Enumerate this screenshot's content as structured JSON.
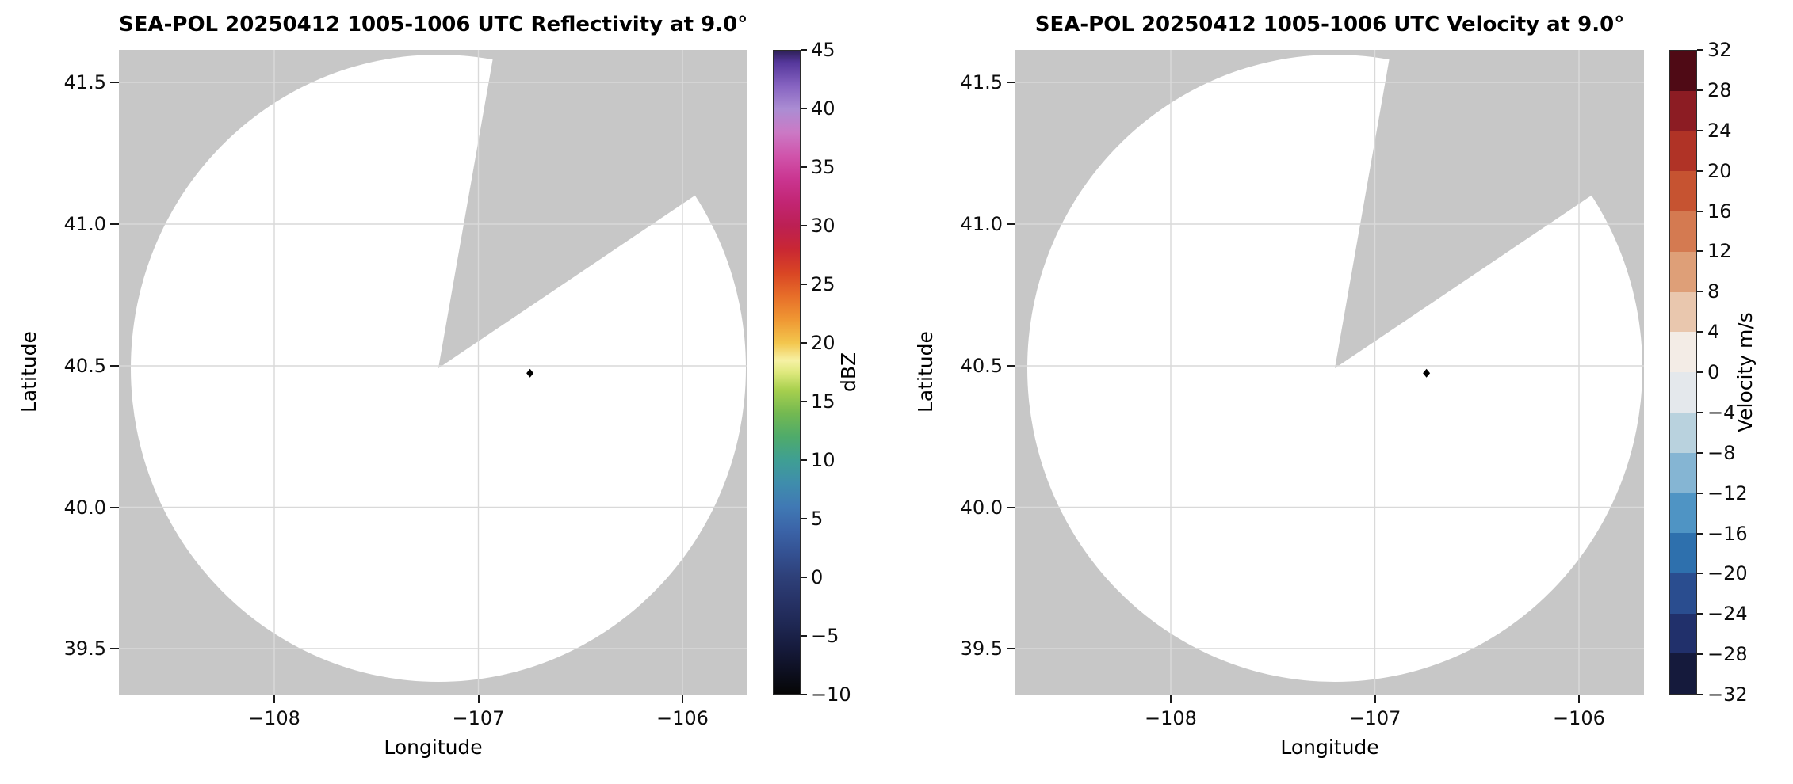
{
  "plot": {
    "masked_color": "#c7c7c7",
    "scan_fill": "#ffffff",
    "grid_color": "#d9d9d9",
    "marker_color": "#000000"
  },
  "panels": [
    {
      "title": "SEA-POL 20250412 1005-1006 UTC Reflectivity at 9.0°",
      "xlabel": "Longitude",
      "ylabel": "Latitude",
      "xtick_labels": [
        "−108",
        "−107",
        "−106"
      ],
      "ytick_labels": [
        "41.5",
        "41.0",
        "40.5",
        "40.0",
        "39.5"
      ],
      "colorbar": {
        "label": "dBZ",
        "type": "continuous",
        "min": -10,
        "max": 45,
        "tick_labels": [
          "45",
          "40",
          "35",
          "30",
          "25",
          "20",
          "15",
          "10",
          "5",
          "0",
          "−5",
          "−10"
        ],
        "gradient_stops": [
          {
            "v": -10,
            "c": "#060606"
          },
          {
            "v": -8,
            "c": "#0e1022"
          },
          {
            "v": -6,
            "c": "#161b3d"
          },
          {
            "v": -4,
            "c": "#1f2854"
          },
          {
            "v": -2,
            "c": "#273367"
          },
          {
            "v": 0,
            "c": "#2e4079"
          },
          {
            "v": 2,
            "c": "#345192"
          },
          {
            "v": 4,
            "c": "#3b64a8"
          },
          {
            "v": 6,
            "c": "#4079b4"
          },
          {
            "v": 8,
            "c": "#3f8dac"
          },
          {
            "v": 10,
            "c": "#3f9f93"
          },
          {
            "v": 12,
            "c": "#4fab6a"
          },
          {
            "v": 14,
            "c": "#74b951"
          },
          {
            "v": 16,
            "c": "#a8d04e"
          },
          {
            "v": 17.5,
            "c": "#dfe97e"
          },
          {
            "v": 18.5,
            "c": "#f6f1a4"
          },
          {
            "v": 20,
            "c": "#f3c64d"
          },
          {
            "v": 22,
            "c": "#ef9733"
          },
          {
            "v": 24,
            "c": "#e76e29"
          },
          {
            "v": 26,
            "c": "#d94524"
          },
          {
            "v": 28,
            "c": "#c92733"
          },
          {
            "v": 30,
            "c": "#bc2053"
          },
          {
            "v": 32,
            "c": "#c22573"
          },
          {
            "v": 34,
            "c": "#ca3590"
          },
          {
            "v": 36,
            "c": "#d054ab"
          },
          {
            "v": 38,
            "c": "#cb79c5"
          },
          {
            "v": 40,
            "c": "#ab8dd3"
          },
          {
            "v": 42,
            "c": "#8663c1"
          },
          {
            "v": 44,
            "c": "#55379b"
          },
          {
            "v": 45,
            "c": "#2e2058"
          }
        ]
      }
    },
    {
      "title": "SEA-POL 20250412 1005-1006 UTC Velocity at 9.0°",
      "xlabel": "Longitude",
      "ylabel": "Latitude",
      "xtick_labels": [
        "−108",
        "−107",
        "−106"
      ],
      "ytick_labels": [
        "41.5",
        "41.0",
        "40.5",
        "40.0",
        "39.5"
      ],
      "colorbar": {
        "label": "Velocity m/s",
        "type": "discrete",
        "min": -32,
        "max": 32,
        "tick_labels": [
          "32",
          "28",
          "24",
          "20",
          "16",
          "12",
          "8",
          "4",
          "0",
          "−4",
          "−8",
          "−12",
          "−16",
          "−20",
          "−24",
          "−28",
          "−32"
        ],
        "segment_colors_bottom_to_top": [
          "#151a3c",
          "#21306b",
          "#2a4d8f",
          "#2e70ad",
          "#4f94c4",
          "#85b5d3",
          "#b9d2de",
          "#e4e8ec",
          "#f3ece6",
          "#e9c7ae",
          "#de9f78",
          "#d47a51",
          "#c65331",
          "#b03326",
          "#8c1c23",
          "#4f0a15"
        ]
      }
    }
  ],
  "chart_data": [
    {
      "type": "radar_ppi",
      "title": "SEA-POL 20250412 1005-1006 UTC Reflectivity at 9.0°",
      "field": "reflectivity",
      "units": "dBZ",
      "elevation_angle_deg": 9.0,
      "xlabel": "Longitude",
      "ylabel": "Latitude",
      "xticks": [
        -108,
        -107,
        -106
      ],
      "yticks": [
        39.5,
        40.0,
        40.5,
        41.0,
        41.5
      ],
      "xlim": [
        -108.76,
        -105.68
      ],
      "ylim": [
        39.34,
        41.61
      ],
      "grid": true,
      "radar_site": {
        "lon": -107.21,
        "lat": 40.49
      },
      "scan_extent": {
        "lon_min": -108.7,
        "lon_max": -105.7,
        "lat_min": 39.38,
        "lat_max": 41.56
      },
      "masked_sector_azimuth_deg": {
        "from": 10,
        "to": 56
      },
      "marker_point": {
        "lon": -106.75,
        "lat": 40.47
      },
      "echoes": [],
      "note": "Scan circle is entirely blank (no reflectivity echoes rendered); wedge sector between ~10° and ~56° azimuth is unscanned and shows the gray masked background.",
      "colorbar": {
        "label": "dBZ",
        "min": -10,
        "max": 45,
        "tick_step": 5,
        "style": "continuous spectral: black → navy → blue → teal → green → yellow → orange → red → magenta → purple → dark indigo"
      }
    },
    {
      "type": "radar_ppi",
      "title": "SEA-POL 20250412 1005-1006 UTC Velocity at 9.0°",
      "field": "radial_velocity",
      "units": "m/s",
      "elevation_angle_deg": 9.0,
      "xlabel": "Longitude",
      "ylabel": "Latitude",
      "xticks": [
        -108,
        -107,
        -106
      ],
      "yticks": [
        39.5,
        40.0,
        40.5,
        41.0,
        41.5
      ],
      "xlim": [
        -108.76,
        -105.68
      ],
      "ylim": [
        39.34,
        41.61
      ],
      "grid": true,
      "radar_site": {
        "lon": -107.21,
        "lat": 40.49
      },
      "scan_extent": {
        "lon_min": -108.7,
        "lon_max": -105.7,
        "lat_min": 39.38,
        "lat_max": 41.56
      },
      "masked_sector_azimuth_deg": {
        "from": 10,
        "to": 56
      },
      "marker_point": {
        "lon": -106.75,
        "lat": 40.47
      },
      "echoes": [],
      "note": "Scan circle is entirely blank (no velocity data rendered); identical geometry to the reflectivity panel.",
      "colorbar": {
        "label": "Velocity m/s",
        "min": -32,
        "max": 32,
        "tick_step": 4,
        "style": "discrete diverging blue–white–red (balance), 16 bins"
      }
    }
  ]
}
